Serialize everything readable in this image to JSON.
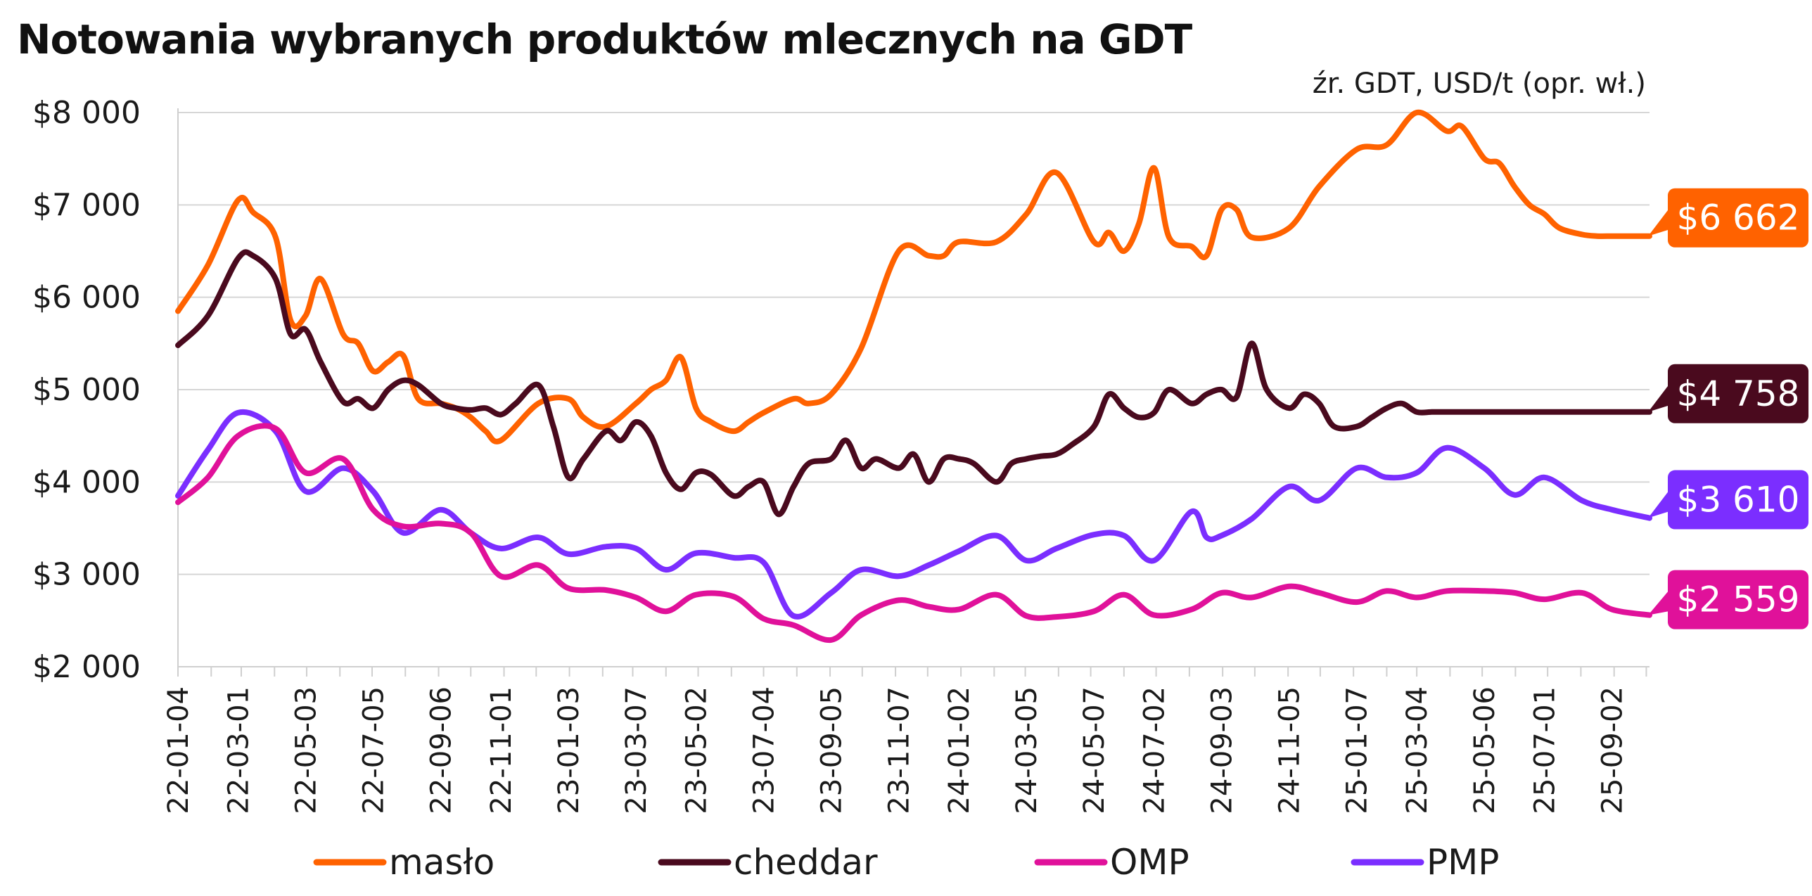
{
  "chart_data": {
    "type": "line",
    "title": "Notowania wybranych produktów mlecznych na GDT",
    "source_note": "źr. GDT, USD/t (opr. wł.)",
    "x_start": "2022-01-04",
    "x_end": "2025-10-07",
    "x_tick_labels": [
      "22-01-04",
      "22-03-01",
      "22-05-03",
      "22-07-05",
      "22-09-06",
      "22-11-01",
      "23-01-03",
      "23-03-07",
      "23-05-02",
      "23-07-04",
      "23-09-05",
      "23-11-07",
      "24-01-02",
      "24-03-05",
      "24-05-07",
      "24-07-02",
      "24-09-03",
      "24-11-05",
      "25-01-07",
      "25-03-04",
      "25-05-06",
      "25-07-01",
      "25-09-02"
    ],
    "y_tick_labels": [
      "$2 000",
      "$3 000",
      "$4 000",
      "$5 000",
      "$6 000",
      "$7 000",
      "$8 000"
    ],
    "ylim": [
      2000,
      8000
    ],
    "y_ticks": [
      2000,
      3000,
      4000,
      5000,
      6000,
      7000,
      8000
    ],
    "grid": "horizontal",
    "legend_position": "bottom",
    "series": [
      {
        "name": "masło",
        "color": "#ff6200",
        "end_label": "$6 662",
        "x": [
          "2022-01-04",
          "2022-02-01",
          "2022-03-01",
          "2022-03-15",
          "2022-04-05",
          "2022-04-19",
          "2022-05-03",
          "2022-05-17",
          "2022-06-07",
          "2022-06-21",
          "2022-07-05",
          "2022-07-19",
          "2022-08-02",
          "2022-08-16",
          "2022-09-06",
          "2022-09-20",
          "2022-10-04",
          "2022-10-18",
          "2022-11-01",
          "2022-12-06",
          "2023-01-03",
          "2023-01-17",
          "2023-02-07",
          "2023-03-07",
          "2023-03-21",
          "2023-04-04",
          "2023-04-18",
          "2023-05-02",
          "2023-05-16",
          "2023-06-06",
          "2023-06-20",
          "2023-07-04",
          "2023-08-01",
          "2023-08-15",
          "2023-09-05",
          "2023-10-03",
          "2023-11-07",
          "2023-12-05",
          "2023-12-19",
          "2024-01-02",
          "2024-02-06",
          "2024-03-05",
          "2024-04-02",
          "2024-05-07",
          "2024-05-21",
          "2024-06-04",
          "2024-06-18",
          "2024-07-02",
          "2024-07-16",
          "2024-08-06",
          "2024-08-20",
          "2024-09-03",
          "2024-09-17",
          "2024-10-01",
          "2024-11-05",
          "2024-12-03",
          "2025-01-07",
          "2025-02-04",
          "2025-03-04",
          "2025-04-01",
          "2025-04-15",
          "2025-05-06",
          "2025-05-20",
          "2025-06-03",
          "2025-06-17",
          "2025-07-01",
          "2025-07-15",
          "2025-08-05",
          "2025-08-19",
          "2025-09-02",
          "2025-09-16",
          "2025-10-07"
        ],
        "y": [
          5850,
          6350,
          7050,
          6920,
          6650,
          5750,
          5800,
          6200,
          5600,
          5500,
          5200,
          5300,
          5370,
          4900,
          4850,
          4800,
          4700,
          4550,
          4450,
          4850,
          4900,
          4700,
          4600,
          4850,
          5000,
          5100,
          5350,
          4800,
          4650,
          4550,
          4650,
          4750,
          4900,
          4850,
          4950,
          5450,
          6500,
          6450,
          6450,
          6600,
          6600,
          6900,
          7350,
          6600,
          6700,
          6500,
          6800,
          7400,
          6650,
          6550,
          6450,
          6950,
          6950,
          6650,
          6750,
          7200,
          7600,
          7650,
          8000,
          7800,
          7850,
          7500,
          7450,
          7200,
          7000,
          6900,
          6750,
          6680,
          6662,
          6662,
          6662,
          6662
        ]
      },
      {
        "name": "cheddar",
        "color": "#4a0a1e",
        "end_label": "$4 758",
        "x": [
          "2022-01-04",
          "2022-02-01",
          "2022-03-01",
          "2022-03-15",
          "2022-04-05",
          "2022-04-19",
          "2022-05-03",
          "2022-05-17",
          "2022-06-07",
          "2022-06-21",
          "2022-07-05",
          "2022-07-19",
          "2022-08-02",
          "2022-08-16",
          "2022-09-06",
          "2022-09-20",
          "2022-10-04",
          "2022-10-18",
          "2022-11-01",
          "2022-11-15",
          "2022-12-06",
          "2022-12-20",
          "2023-01-03",
          "2023-01-17",
          "2023-02-07",
          "2023-02-21",
          "2023-03-07",
          "2023-03-21",
          "2023-04-04",
          "2023-04-18",
          "2023-05-02",
          "2023-05-16",
          "2023-06-06",
          "2023-06-20",
          "2023-07-04",
          "2023-07-18",
          "2023-08-01",
          "2023-08-15",
          "2023-09-05",
          "2023-09-19",
          "2023-10-03",
          "2023-10-17",
          "2023-11-07",
          "2023-11-21",
          "2023-12-05",
          "2023-12-19",
          "2024-01-02",
          "2024-01-16",
          "2024-02-06",
          "2024-02-20",
          "2024-03-05",
          "2024-03-19",
          "2024-04-02",
          "2024-04-16",
          "2024-05-07",
          "2024-05-21",
          "2024-06-04",
          "2024-06-18",
          "2024-07-02",
          "2024-07-16",
          "2024-08-06",
          "2024-08-20",
          "2024-09-03",
          "2024-09-17",
          "2024-10-01",
          "2024-10-15",
          "2024-11-05",
          "2024-11-19",
          "2024-12-03",
          "2024-12-17",
          "2025-01-07",
          "2025-01-21",
          "2025-02-04",
          "2025-02-18",
          "2025-03-04",
          "2025-03-18",
          "2025-04-01",
          "2025-04-15",
          "2025-05-06",
          "2025-05-20",
          "2025-06-03",
          "2025-06-17",
          "2025-07-01",
          "2025-07-15",
          "2025-08-05",
          "2025-08-19",
          "2025-09-02",
          "2025-09-16",
          "2025-10-07"
        ],
        "y": [
          5480,
          5800,
          6420,
          6450,
          6200,
          5600,
          5650,
          5300,
          4870,
          4900,
          4800,
          5000,
          5100,
          5050,
          4850,
          4800,
          4780,
          4800,
          4730,
          4850,
          5050,
          4600,
          4050,
          4250,
          4550,
          4450,
          4650,
          4500,
          4100,
          3920,
          4100,
          4080,
          3850,
          3950,
          4000,
          3650,
          3950,
          4200,
          4250,
          4450,
          4150,
          4250,
          4150,
          4300,
          4000,
          4250,
          4250,
          4200,
          4000,
          4200,
          4250,
          4280,
          4300,
          4400,
          4600,
          4950,
          4800,
          4700,
          4750,
          5000,
          4850,
          4950,
          5000,
          4920,
          5500,
          5000,
          4800,
          4950,
          4850,
          4600,
          4600,
          4700,
          4800,
          4850,
          4758,
          4758,
          4758,
          4758,
          4758,
          4758,
          4758,
          4758,
          4758,
          4758,
          4758,
          4758,
          4758,
          4758,
          4758
        ]
      },
      {
        "name": "OMP",
        "color": "#e0119a",
        "end_label": "$2 559",
        "x": [
          "2022-01-04",
          "2022-02-01",
          "2022-03-01",
          "2022-04-05",
          "2022-05-03",
          "2022-06-07",
          "2022-07-05",
          "2022-08-02",
          "2022-09-06",
          "2022-10-04",
          "2022-11-01",
          "2022-12-06",
          "2023-01-03",
          "2023-02-07",
          "2023-03-07",
          "2023-04-04",
          "2023-05-02",
          "2023-06-06",
          "2023-07-04",
          "2023-08-01",
          "2023-09-05",
          "2023-10-03",
          "2023-11-07",
          "2023-12-05",
          "2024-01-02",
          "2024-02-06",
          "2024-03-05",
          "2024-04-02",
          "2024-05-07",
          "2024-06-04",
          "2024-07-02",
          "2024-08-06",
          "2024-09-03",
          "2024-10-01",
          "2024-11-05",
          "2024-12-03",
          "2025-01-07",
          "2025-02-04",
          "2025-03-04",
          "2025-04-01",
          "2025-05-06",
          "2025-06-03",
          "2025-07-01",
          "2025-08-05",
          "2025-09-02",
          "2025-10-07"
        ],
        "y": [
          3780,
          4050,
          4500,
          4580,
          4100,
          4250,
          3700,
          3520,
          3550,
          3450,
          2980,
          3100,
          2850,
          2830,
          2750,
          2600,
          2780,
          2760,
          2520,
          2450,
          2290,
          2560,
          2720,
          2650,
          2620,
          2780,
          2550,
          2540,
          2600,
          2780,
          2560,
          2620,
          2800,
          2750,
          2870,
          2800,
          2700,
          2820,
          2750,
          2820,
          2820,
          2800,
          2730,
          2800,
          2620,
          2559
        ]
      },
      {
        "name": "PMP",
        "color": "#7b2eff",
        "end_label": "$3 610",
        "x": [
          "2022-01-04",
          "2022-02-01",
          "2022-03-01",
          "2022-04-05",
          "2022-05-03",
          "2022-06-07",
          "2022-07-05",
          "2022-08-02",
          "2022-09-06",
          "2022-10-04",
          "2022-11-01",
          "2022-12-06",
          "2023-01-03",
          "2023-02-07",
          "2023-03-07",
          "2023-04-04",
          "2023-05-02",
          "2023-06-06",
          "2023-07-04",
          "2023-08-01",
          "2023-09-05",
          "2023-10-03",
          "2023-11-07",
          "2023-12-05",
          "2024-01-02",
          "2024-02-06",
          "2024-03-05",
          "2024-04-02",
          "2024-05-07",
          "2024-06-04",
          "2024-07-02",
          "2024-08-06",
          "2024-08-20",
          "2024-09-03",
          "2024-10-01",
          "2024-11-05",
          "2024-12-03",
          "2025-01-07",
          "2025-02-04",
          "2025-03-04",
          "2025-04-01",
          "2025-05-06",
          "2025-06-03",
          "2025-07-01",
          "2025-08-05",
          "2025-09-02",
          "2025-10-07"
        ],
        "y": [
          3850,
          4350,
          4750,
          4550,
          3900,
          4150,
          3900,
          3450,
          3700,
          3450,
          3280,
          3400,
          3220,
          3300,
          3280,
          3050,
          3230,
          3180,
          3130,
          2550,
          2800,
          3050,
          2980,
          3100,
          3250,
          3420,
          3150,
          3280,
          3430,
          3420,
          3150,
          3680,
          3400,
          3420,
          3600,
          3950,
          3800,
          4150,
          4050,
          4100,
          4370,
          4150,
          3860,
          4050,
          3800,
          3700,
          3610
        ]
      }
    ]
  }
}
